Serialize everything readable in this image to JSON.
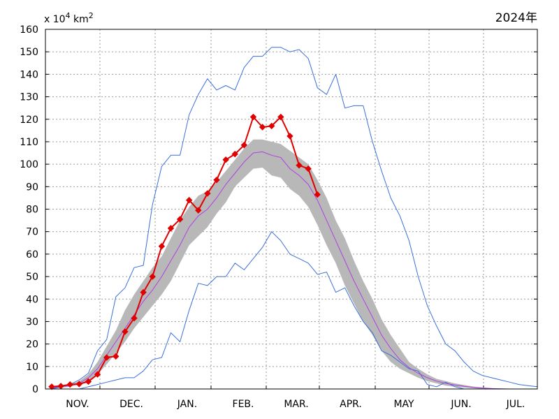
{
  "chart_data": {
    "type": "line",
    "year_label": "2024年",
    "unit": {
      "prefix": "x 10",
      "exp1": "4",
      "mid": " km",
      "exp2": "2"
    },
    "ylim": [
      0,
      160
    ],
    "y_ticks": [
      0,
      10,
      20,
      30,
      40,
      50,
      60,
      70,
      80,
      90,
      100,
      110,
      120,
      130,
      140,
      150,
      160
    ],
    "xlim": [
      0,
      44
    ],
    "month_boundaries": [
      3,
      9,
      15,
      21,
      27,
      33,
      39
    ],
    "month_labels": [
      {
        "label": "NOV.",
        "x": 5.5
      },
      {
        "label": "DEC.",
        "x": 11.5
      },
      {
        "label": "JAN.",
        "x": 17.5
      },
      {
        "label": "FEB.",
        "x": 23.5
      },
      {
        "label": "MAR.",
        "x": 29.5
      },
      {
        "label": "APR.",
        "x": 35.5
      },
      {
        "label": "MAY",
        "x": 41.5
      },
      {
        "label": "JUN.",
        "x": 47.5
      },
      {
        "label": "JUL.",
        "x": 53.5
      }
    ],
    "x_step": 1,
    "series": [
      {
        "role": "max",
        "color": "#3a6fd8",
        "values": [
          0,
          1,
          2,
          4,
          7,
          17,
          22,
          41,
          45,
          54,
          55,
          82,
          99,
          104,
          104,
          122,
          131,
          138,
          133,
          135,
          133,
          143,
          148,
          148,
          152,
          152,
          150,
          151,
          147,
          134,
          131,
          140,
          125,
          126,
          126,
          110,
          97,
          85,
          77,
          66,
          50,
          37,
          28,
          20,
          17,
          12,
          8,
          6,
          5,
          4,
          3,
          2,
          1.5,
          1
        ]
      },
      {
        "role": "min",
        "color": "#3a6fd8",
        "values": [
          0,
          0,
          0,
          0,
          1,
          2,
          3,
          4,
          5,
          5,
          8,
          13,
          14,
          25,
          21,
          35,
          47,
          46,
          50,
          50,
          56,
          53,
          58,
          63,
          70,
          66,
          60,
          58,
          56,
          51,
          52,
          43,
          45,
          37,
          30,
          25,
          17,
          15,
          12,
          9,
          8,
          2,
          1,
          3,
          1,
          0,
          0,
          0,
          0,
          0,
          0,
          0,
          0,
          0
        ]
      },
      {
        "role": "average",
        "color": "#b040e0",
        "values": [
          0.5,
          1,
          1.5,
          2.5,
          5,
          9,
          15,
          21,
          27,
          33,
          39,
          44,
          50,
          57,
          64,
          72,
          77,
          80,
          85,
          91,
          96,
          101,
          105,
          105.5,
          104,
          103,
          98,
          95,
          91,
          84,
          75,
          66,
          57,
          48,
          40,
          32,
          24,
          18,
          13,
          9.5,
          7,
          5,
          3.5,
          2.5,
          1.8,
          1.2,
          0.7,
          0.4,
          0.2,
          0.1,
          0,
          0,
          0,
          0
        ]
      },
      {
        "role": "std_band",
        "color": "#b8b8b8",
        "lower": [
          0,
          0.5,
          1,
          2,
          3.5,
          6.5,
          11,
          16,
          21,
          27,
          32,
          37,
          42,
          48,
          56,
          64,
          68,
          72,
          78,
          83,
          90,
          94,
          98,
          98.5,
          95,
          94,
          89,
          86,
          81,
          73,
          64,
          56,
          46,
          38,
          30,
          24,
          17,
          12,
          9,
          7,
          5,
          3.5,
          2.5,
          1.5,
          1,
          0.6,
          0.3,
          0.1,
          0,
          0,
          0,
          0,
          0,
          0
        ],
        "upper": [
          1,
          1.5,
          2,
          3.5,
          6.5,
          12,
          19,
          26,
          35,
          42,
          48,
          54,
          59,
          67,
          75,
          81,
          86,
          88,
          92,
          97,
          102,
          107,
          111,
          111,
          110,
          109,
          106,
          103,
          100,
          93,
          85,
          75,
          67,
          57,
          48,
          40,
          31,
          24,
          18,
          12,
          9,
          6.5,
          4.5,
          3.5,
          2.5,
          1.8,
          1.1,
          0.7,
          0.4,
          0.2,
          0.1,
          0,
          0,
          0
        ]
      },
      {
        "role": "current_year",
        "color": "#e00000",
        "values": [
          1,
          1.3,
          2,
          2.2,
          3.3,
          6.5,
          14,
          14.5,
          25.5,
          31.5,
          43,
          50,
          63.5,
          71.5,
          75.5,
          84,
          79.5,
          87,
          93,
          102,
          104.5,
          108.5,
          121,
          116.5,
          117,
          121,
          112.5,
          99.5,
          98,
          86.5
        ]
      }
    ]
  }
}
